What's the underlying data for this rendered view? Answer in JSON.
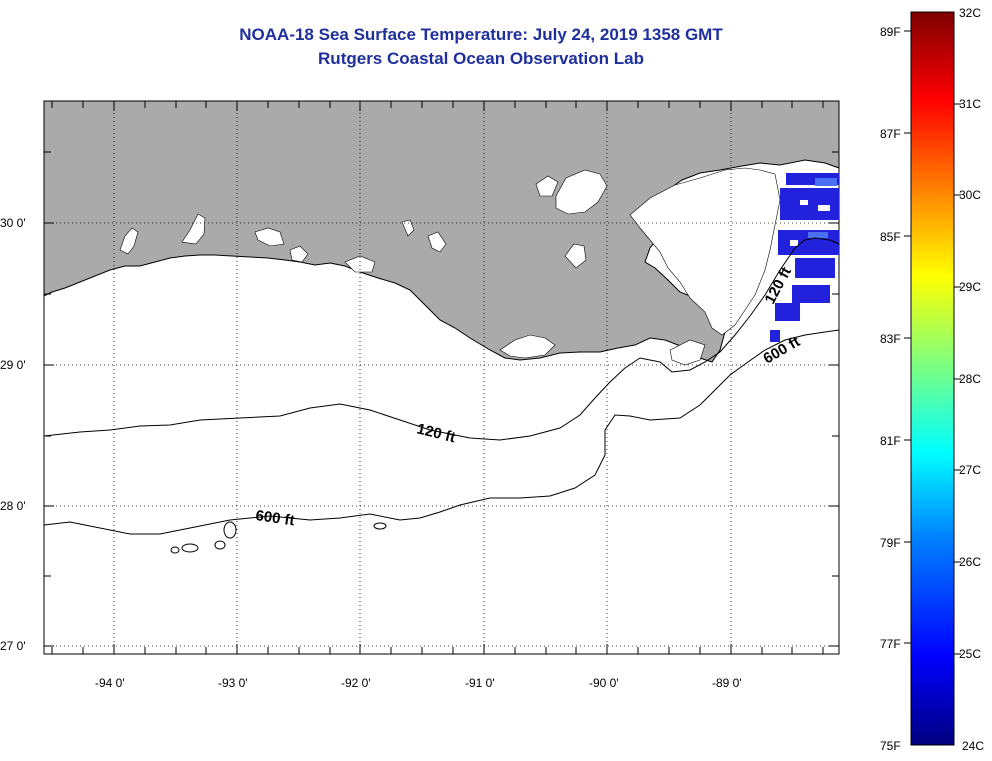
{
  "header": {
    "title": "NOAA-18 Sea Surface Temperature:  July 24, 2019 1358 GMT",
    "subtitle": "Rutgers Coastal Ocean Observation Lab"
  },
  "map": {
    "longitude_labels": [
      "-94 0'",
      "-93 0'",
      "-92 0'",
      "-91 0'",
      "-90 0'",
      "-89 0'"
    ],
    "latitude_labels": [
      "30 0'",
      "29 0'",
      "28 0'",
      "27 0'"
    ],
    "contour_labels": [
      "120 ft",
      "600 ft",
      "120 ft",
      "600 ft"
    ],
    "colors": {
      "land": "#aaaaaa",
      "cloud_or_nodata": "#ffffff",
      "water_sst_pixels": "#2222dd",
      "contour": "#000000"
    }
  },
  "colorbar": {
    "fahrenheit_labels": [
      "89F",
      "87F",
      "85F",
      "83F",
      "81F",
      "79F",
      "77F",
      "75F"
    ],
    "celsius_labels": [
      "32C",
      "31C",
      "30C",
      "29C",
      "28C",
      "27C",
      "26C",
      "25C",
      "24C"
    ],
    "range_celsius": [
      24,
      32
    ],
    "gradient_stops": [
      "#00007f",
      "#0000ff",
      "#007fff",
      "#00ffff",
      "#7fff7f",
      "#ffff00",
      "#ff7f00",
      "#ff0000",
      "#7f0000"
    ]
  }
}
